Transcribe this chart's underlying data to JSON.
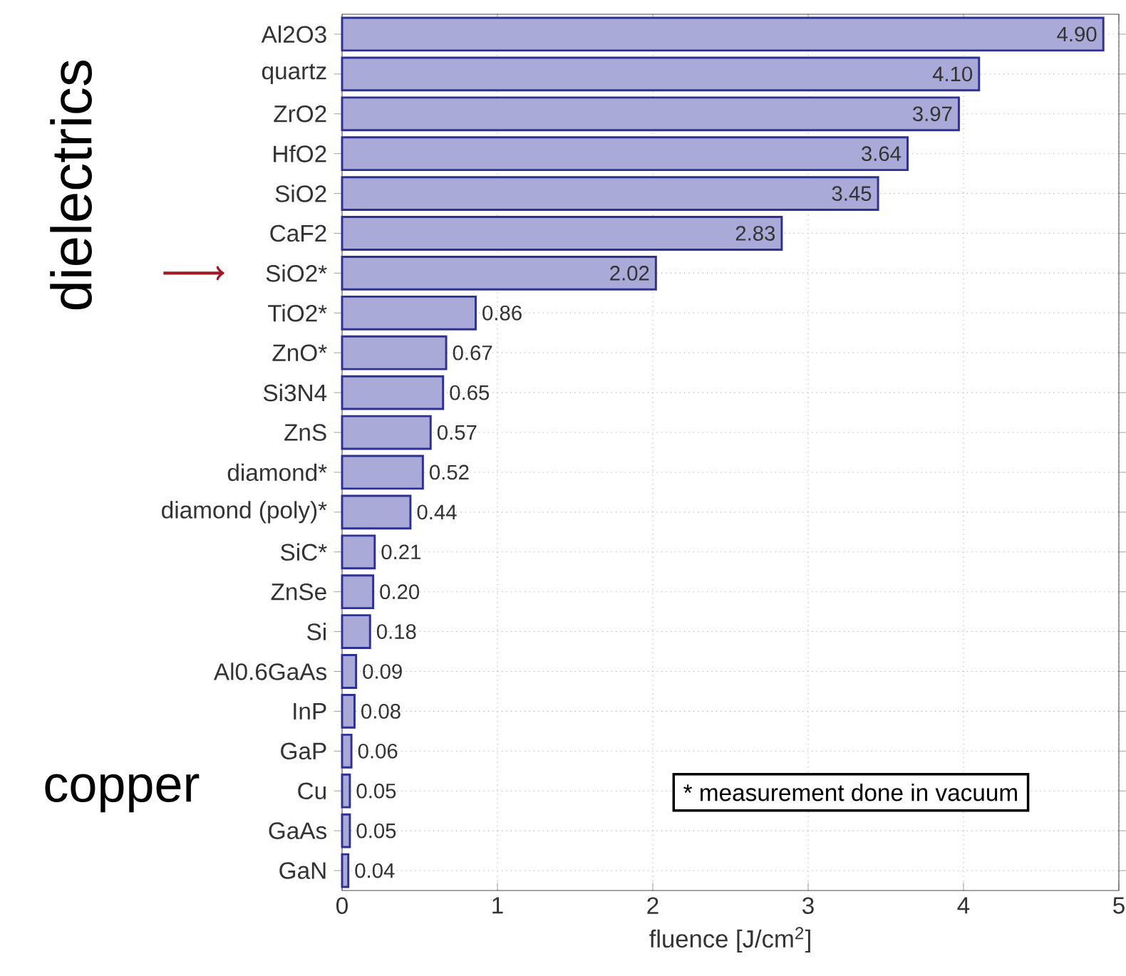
{
  "chart_data": {
    "type": "bar",
    "orientation": "horizontal",
    "xlabel": "fluence [J/cm$^{2}$]",
    "categories": [
      "Al2O3",
      "quartz",
      "ZrO2",
      "HfO2",
      "SiO2",
      "CaF2",
      "SiO2*",
      "TiO2*",
      "ZnO*",
      "Si3N4",
      "ZnS",
      "diamond*",
      "diamond (poly)*",
      "SiC*",
      "ZnSe",
      "Si",
      "Al0.6GaAs",
      "InP",
      "GaP",
      "Cu",
      "GaAs",
      "GaN"
    ],
    "values": [
      4.9,
      4.1,
      3.97,
      3.64,
      3.45,
      2.83,
      2.02,
      0.86,
      0.67,
      0.65,
      0.57,
      0.52,
      0.44,
      0.21,
      0.2,
      0.18,
      0.09,
      0.08,
      0.06,
      0.05,
      0.05,
      0.04
    ],
    "value_labels": [
      "4.90",
      "4.10",
      "3.97",
      "3.64",
      "3.45",
      "2.83",
      "2.02",
      "0.86",
      "0.67",
      "0.65",
      "0.57",
      "0.52",
      "0.44",
      "0.21",
      "0.20",
      "0.18",
      "0.09",
      "0.08",
      "0.06",
      "0.05",
      "0.05",
      "0.04"
    ],
    "color": "#a9aad8",
    "xlim": [
      0,
      5
    ],
    "xticks": [
      0,
      1,
      2,
      3,
      4,
      5
    ],
    "grid": true,
    "annotations": [
      "dielectrics",
      "copper",
      "* measurement done in vacuum"
    ]
  }
}
